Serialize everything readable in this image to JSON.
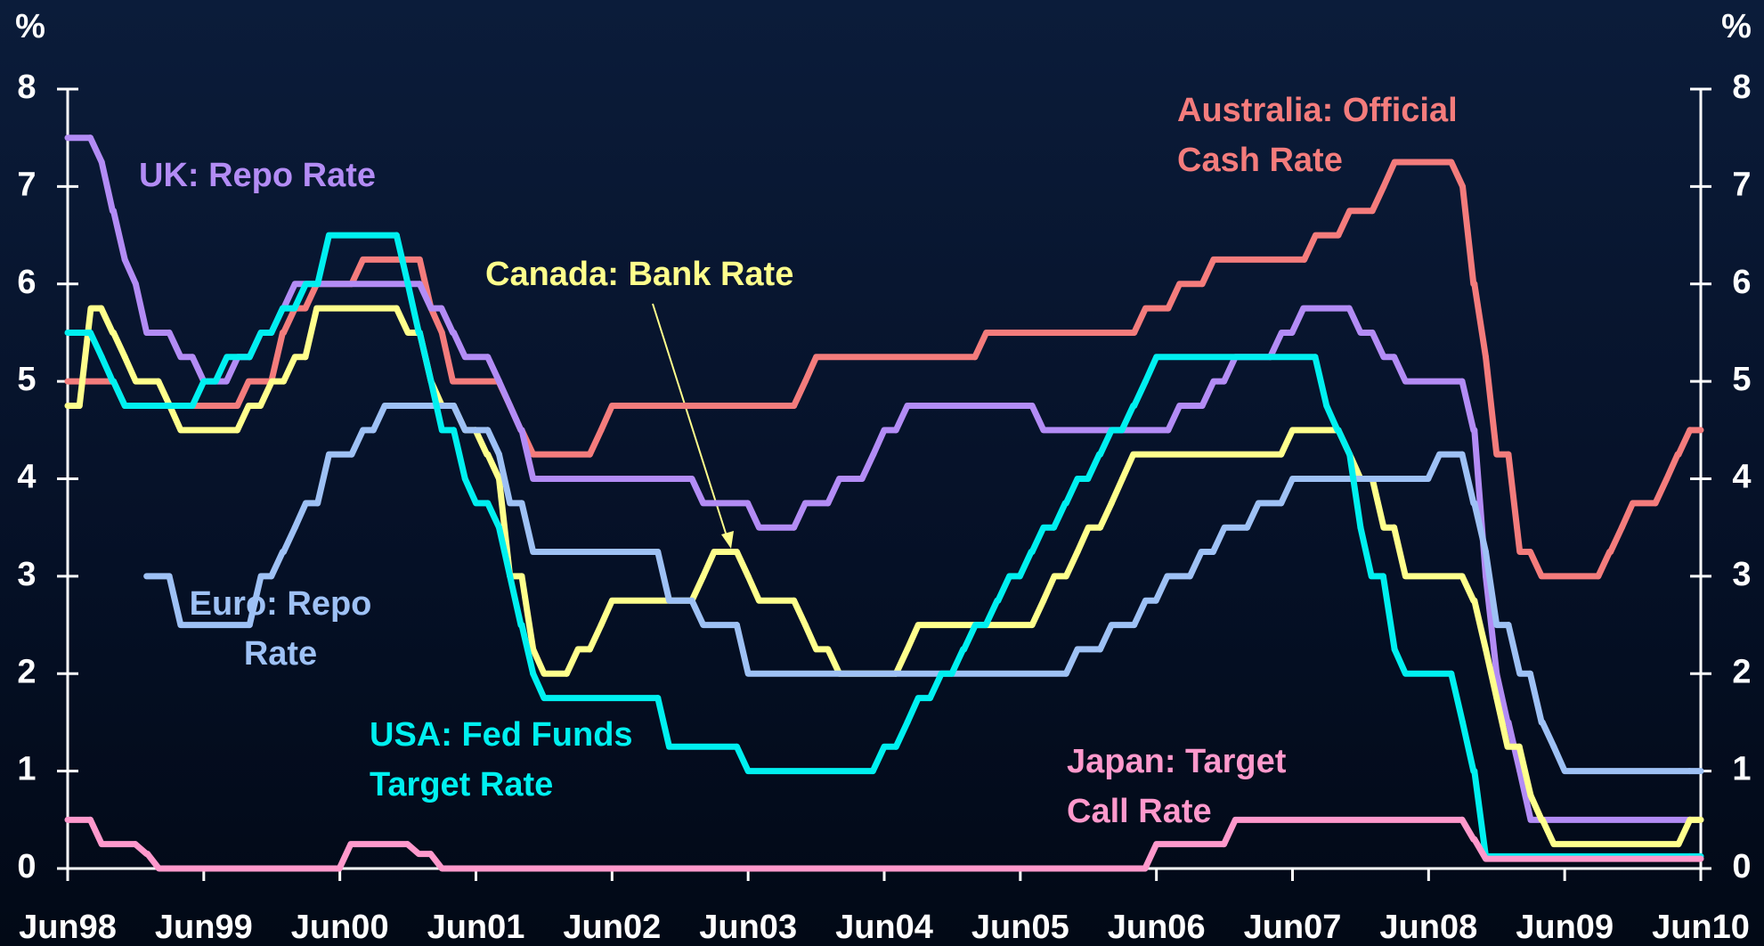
{
  "chart_data": {
    "type": "line",
    "ylabel": "%",
    "y2label": "%",
    "xlim": [
      1998.5,
      2010.5
    ],
    "xticks": [
      {
        "value": 1998.5,
        "label": "Jun98"
      },
      {
        "value": 1999.5,
        "label": "Jun99"
      },
      {
        "value": 2000.5,
        "label": "Jun00"
      },
      {
        "value": 2001.5,
        "label": "Jun01"
      },
      {
        "value": 2002.5,
        "label": "Jun02"
      },
      {
        "value": 2003.5,
        "label": "Jun03"
      },
      {
        "value": 2004.5,
        "label": "Jun04"
      },
      {
        "value": 2005.5,
        "label": "Jun05"
      },
      {
        "value": 2006.5,
        "label": "Jun06"
      },
      {
        "value": 2007.5,
        "label": "Jun07"
      },
      {
        "value": 2008.5,
        "label": "Jun08"
      },
      {
        "value": 2009.5,
        "label": "Jun09"
      },
      {
        "value": 2010.5,
        "label": "Jun10"
      }
    ],
    "ylim": [
      0,
      8
    ],
    "yticks": [
      0,
      1,
      2,
      3,
      4,
      5,
      6,
      7,
      8
    ],
    "y2lim": [
      0,
      8
    ],
    "y2ticks": [
      0,
      1,
      2,
      3,
      4,
      5,
      6,
      7,
      8
    ],
    "annotations": [],
    "series": [
      {
        "name": "Australia: Official Cash Rate",
        "color": "#f47c7c",
        "x": [
          1998.5,
          1998.92,
          1999.83,
          2000.08,
          2000.17,
          2000.33,
          2000.67,
          2001.17,
          2001.25,
          2001.33,
          2001.75,
          2001.83,
          2001.92,
          2002.42,
          2002.5,
          2003.92,
          2004.0,
          2005.25,
          2006.42,
          2006.67,
          2006.92,
          2007.67,
          2007.92,
          2008.17,
          2008.25,
          2008.75,
          2008.83,
          2008.92,
          2009.0,
          2009.17,
          2009.33,
          2009.83,
          2009.92,
          2010.0,
          2010.25,
          2010.33,
          2010.42,
          2010.5
        ],
        "values": [
          5.0,
          4.75,
          5.0,
          5.5,
          5.75,
          6.0,
          6.25,
          5.75,
          5.5,
          5.0,
          4.75,
          4.5,
          4.25,
          4.5,
          4.75,
          5.0,
          5.25,
          5.5,
          5.75,
          6.0,
          6.25,
          6.5,
          6.75,
          7.0,
          7.25,
          7.0,
          6.0,
          5.25,
          4.25,
          3.25,
          3.0,
          3.25,
          3.5,
          3.75,
          4.0,
          4.25,
          4.5,
          4.5
        ]
      },
      {
        "name": "UK: Repo Rate",
        "color": "#b38cf5",
        "x": [
          1998.5,
          1998.75,
          1998.83,
          1998.92,
          1999.0,
          1999.08,
          1999.17,
          1999.33,
          1999.5,
          1999.75,
          1999.92,
          2000.08,
          2000.17,
          2001.17,
          2001.33,
          2001.42,
          2001.67,
          2001.75,
          2001.83,
          2001.92,
          2003.17,
          2003.58,
          2003.92,
          2004.17,
          2004.42,
          2004.5,
          2004.67,
          2005.67,
          2006.67,
          2006.92,
          2007.08,
          2007.42,
          2007.58,
          2008.0,
          2008.17,
          2008.33,
          2008.83,
          2008.92,
          2009.0,
          2009.08,
          2009.17,
          2009.25,
          2010.5
        ],
        "values": [
          7.5,
          7.25,
          6.75,
          6.25,
          6.0,
          5.5,
          5.5,
          5.25,
          5.0,
          5.25,
          5.5,
          5.75,
          6.0,
          5.75,
          5.5,
          5.25,
          5.0,
          4.75,
          4.5,
          4.0,
          3.75,
          3.5,
          3.75,
          4.0,
          4.25,
          4.5,
          4.75,
          4.5,
          4.75,
          5.0,
          5.25,
          5.5,
          5.75,
          5.5,
          5.25,
          5.0,
          4.5,
          3.0,
          2.0,
          1.5,
          1.0,
          0.5,
          0.5
        ]
      },
      {
        "name": "Canada: Bank Rate",
        "color": "#ffff8c",
        "x": [
          1998.5,
          1998.67,
          1998.83,
          1998.92,
          1999.0,
          1999.25,
          1999.33,
          1999.83,
          2000.0,
          2000.17,
          2000.33,
          2001.0,
          2001.17,
          2001.25,
          2001.42,
          2001.58,
          2001.67,
          2001.75,
          2001.92,
          2002.0,
          2002.25,
          2002.42,
          2002.5,
          2003.17,
          2003.25,
          2003.5,
          2003.58,
          2003.92,
          2004.0,
          2004.17,
          2004.67,
          2004.75,
          2005.67,
          2005.75,
          2005.92,
          2006.0,
          2006.17,
          2006.25,
          2006.33,
          2007.5,
          2007.92,
          2008.0,
          2008.17,
          2008.33,
          2008.83,
          2008.92,
          2009.0,
          2009.08,
          2009.25,
          2009.33,
          2009.42,
          2010.42,
          2010.5
        ],
        "values": [
          4.75,
          5.75,
          5.5,
          5.25,
          5.0,
          4.75,
          4.5,
          4.75,
          5.0,
          5.25,
          5.75,
          5.5,
          5.0,
          4.75,
          4.5,
          4.25,
          4.0,
          3.0,
          2.25,
          2.0,
          2.25,
          2.5,
          2.75,
          3.0,
          3.25,
          3.0,
          2.75,
          2.5,
          2.25,
          2.0,
          2.25,
          2.5,
          2.75,
          3.0,
          3.25,
          3.5,
          3.75,
          4.0,
          4.25,
          4.5,
          4.25,
          4.0,
          3.5,
          3.0,
          2.75,
          2.25,
          1.75,
          1.25,
          0.75,
          0.5,
          0.25,
          0.5,
          0.5
        ]
      },
      {
        "name": "Euro: Repo Rate",
        "color": "#9ec1f5",
        "x": [
          1999.08,
          1999.33,
          1999.92,
          2000.08,
          2000.17,
          2000.25,
          2000.42,
          2000.67,
          2000.83,
          2001.42,
          2001.67,
          2001.75,
          2001.92,
          2002.92,
          2003.17,
          2003.5,
          2005.92,
          2006.17,
          2006.42,
          2006.58,
          2006.83,
          2007.0,
          2007.25,
          2007.5,
          2008.58,
          2008.83,
          2008.92,
          2009.0,
          2009.17,
          2009.33,
          2009.42,
          2009.5,
          2010.5
        ],
        "values": [
          3.0,
          2.5,
          3.0,
          3.25,
          3.5,
          3.75,
          4.25,
          4.5,
          4.75,
          4.5,
          4.25,
          3.75,
          3.25,
          2.75,
          2.5,
          2.0,
          2.25,
          2.5,
          2.75,
          3.0,
          3.25,
          3.5,
          3.75,
          4.0,
          4.25,
          3.75,
          3.25,
          2.5,
          2.0,
          1.5,
          1.25,
          1.0,
          1.0
        ]
      },
      {
        "name": "USA: Fed Funds Target Rate",
        "color": "#00f0f0",
        "x": [
          1998.5,
          1998.75,
          1998.83,
          1998.92,
          1999.5,
          1999.67,
          1999.92,
          2000.08,
          2000.25,
          2000.42,
          2001.0,
          2001.08,
          2001.17,
          2001.25,
          2001.42,
          2001.5,
          2001.67,
          2001.75,
          2001.83,
          2001.92,
          2002.0,
          2002.92,
          2003.5,
          2004.5,
          2004.67,
          2004.75,
          2004.92,
          2005.08,
          2005.17,
          2005.33,
          2005.42,
          2005.58,
          2005.67,
          2005.83,
          2005.92,
          2006.08,
          2006.17,
          2006.33,
          2006.42,
          2006.5,
          2007.75,
          2007.83,
          2007.92,
          2008.0,
          2008.08,
          2008.25,
          2008.33,
          2008.75,
          2008.83,
          2008.92,
          2010.5
        ],
        "values": [
          5.5,
          5.25,
          5.0,
          4.75,
          5.0,
          5.25,
          5.5,
          5.75,
          6.0,
          6.5,
          6.0,
          5.5,
          5.0,
          4.5,
          4.0,
          3.75,
          3.5,
          3.0,
          2.5,
          2.0,
          1.75,
          1.25,
          1.0,
          1.25,
          1.5,
          1.75,
          2.0,
          2.25,
          2.5,
          2.75,
          3.0,
          3.25,
          3.5,
          3.75,
          4.0,
          4.25,
          4.5,
          4.75,
          5.0,
          5.25,
          4.75,
          4.5,
          4.25,
          3.5,
          3.0,
          2.25,
          2.0,
          1.5,
          1.0,
          0.125,
          0.125
        ]
      },
      {
        "name": "Japan: Target Call Rate",
        "color": "#ff99cc",
        "x": [
          1998.5,
          1998.75,
          1999.08,
          1999.17,
          2000.58,
          2001.08,
          2001.25,
          2006.5,
          2007.08,
          2008.83,
          2008.92,
          2010.5
        ],
        "values": [
          0.5,
          0.25,
          0.15,
          0.0,
          0.25,
          0.15,
          0.0,
          0.25,
          0.5,
          0.3,
          0.1,
          0.1
        ]
      }
    ]
  }
}
